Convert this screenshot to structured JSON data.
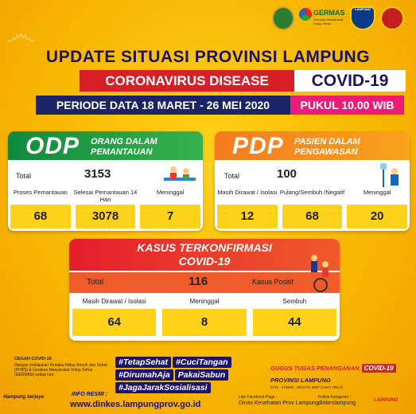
{
  "header": {
    "title": "UPDATE SITUASI PROVINSI LAMPUNG",
    "band_disease": "CORONAVIRUS DISEASE",
    "band_covid": "COVID-19",
    "period": "PERIODE DATA 18 MARET - 26 MEI 2020",
    "time": "PUKUL 10.00 WIB"
  },
  "logos": {
    "germas": "GERMAS",
    "germas_sub": "Gerakan Masyarakat Hidup Sehat",
    "police": "LAMPUNG"
  },
  "odp": {
    "abbr": "ODP",
    "subtitle_1": "ORANG DALAM",
    "subtitle_2": "PEMANTAUAN",
    "total_label": "Total",
    "total_value": "3153",
    "stats": [
      {
        "label": "Proses Pemantauan",
        "value": "68"
      },
      {
        "label": "Selesai Pemantauan 14 Hari",
        "value": "3078"
      },
      {
        "label": "Meninggal",
        "value": "7"
      }
    ]
  },
  "pdp": {
    "abbr": "PDP",
    "subtitle_1": "PASIEN DALAM",
    "subtitle_2": "PENGAWASAN",
    "total_label": "Total",
    "total_value": "100",
    "stats": [
      {
        "label": "Masih Dirawat / Isolasi",
        "value": "12"
      },
      {
        "label": "Pulang/Sembuh /Negatif",
        "value": "68"
      },
      {
        "label": "Meninggal",
        "value": "20"
      }
    ]
  },
  "kasus": {
    "title_1": "KASUS TERKONFIRMASI",
    "title_2": "COVID-19",
    "total_label": "Total",
    "total_value": "116",
    "positif_label": "Kasus Positif",
    "stats": [
      {
        "label": "Masih Dirawat / Isolasi",
        "value": "64"
      },
      {
        "label": "Meninggal",
        "value": "8"
      },
      {
        "label": "Sembuh",
        "value": "44"
      }
    ]
  },
  "footer": {
    "cegah_title": "CEGAH COVID-19",
    "cegah_body": "Dengan melakukan Perilaku Hidup Bersih dan Sehat (PHBS) & Gerakan Masyarakat Hidup Sehat (GERMAS) setiap hari",
    "hashtags": [
      "#TetapSehat",
      "#CuciTangan",
      "#DirumahAja",
      "PakaiSabun",
      "#JagaJarakSosialisasi"
    ],
    "gugus_title": "GUGUS TUGAS PENANGANAN",
    "gugus_covid": "COVID-19",
    "gugus_prov": "PROVINSI LAMPUNG",
    "gugus_hotline": "0721 - 476508 · 0812741 5087 (CHAT ONLY)",
    "tagline": "#lampung berjaya",
    "info_label": "INFO RESMI :",
    "info_url": "www.dinkes.lampungprov.go.id",
    "fb_label": "Like Facebook Page :",
    "fb_value": "Dinas Kesehatan Prov Lampung",
    "ig_label": "Follow Instagram :",
    "ig_value": "dinkeslampung",
    "berjaya": "LAMPUNG"
  }
}
